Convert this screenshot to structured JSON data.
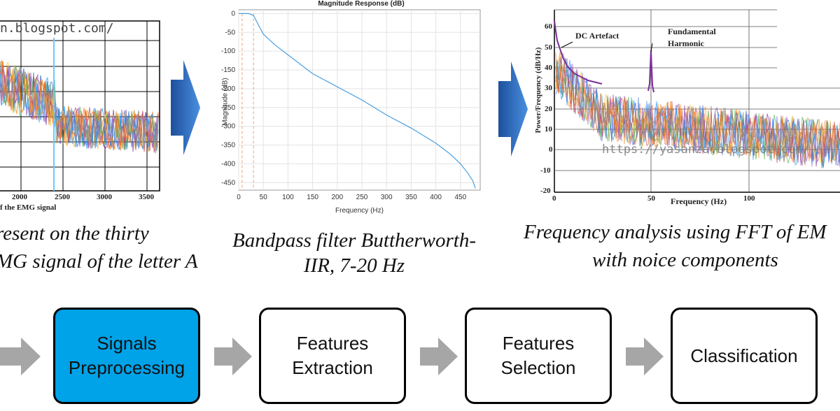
{
  "panel1": {
    "watermark": "n.blogspot.com/",
    "x_ticks": [
      "2000",
      "2500",
      "3000",
      "3500"
    ],
    "xlabel_fragment": "f the EMG signal",
    "caption_line1": "resent on the thirty",
    "caption_line2": "MG signal of the letter A"
  },
  "panel2": {
    "title": "Magnitude Response (dB)",
    "ylabel": "Magnitude (dB)",
    "xlabel": "Frequency (Hz)",
    "caption_line1": "Bandpass filter Buttherworth-",
    "caption_line2": "IIR, 7-20 Hz",
    "chart_data": {
      "type": "line",
      "title": "Magnitude Response (dB)",
      "xlabel": "Frequency (Hz)",
      "ylabel": "Magnitude (dB)",
      "xlim": [
        0,
        490
      ],
      "ylim": [
        -470,
        10
      ],
      "x_ticks": [
        0,
        50,
        100,
        150,
        200,
        250,
        300,
        350,
        400,
        450
      ],
      "y_ticks": [
        0,
        -50,
        -100,
        -150,
        -200,
        -250,
        -300,
        -350,
        -400,
        -450
      ],
      "grid": true,
      "series": [
        {
          "x": [
            0,
            7,
            20,
            30,
            50,
            75,
            100,
            150,
            200,
            250,
            300,
            350,
            400,
            430,
            450,
            465,
            475,
            480
          ],
          "y": [
            0,
            0,
            0,
            -5,
            -55,
            -85,
            -110,
            -160,
            -195,
            -230,
            -270,
            -305,
            -345,
            -375,
            -400,
            -425,
            -445,
            -465
          ]
        }
      ],
      "markers_x": [
        7,
        30
      ]
    }
  },
  "panel3": {
    "ylabel": "Power/Frequency (dB/Hz)",
    "xlabel": "Frequency (Hz)",
    "y_ticks": [
      "60",
      "50",
      "40",
      "30",
      "20",
      "10",
      "0",
      "-10",
      "-20"
    ],
    "x_ticks": [
      "0",
      "50",
      "100"
    ],
    "annotation_dc": "DC Artefact",
    "annotation_fund_line1": "Fundamental",
    "annotation_fund_line2": "Harmonic",
    "watermark": "https://yasanza.blogspot.com/",
    "caption_line1": "Frequency analysis using FFT of EM",
    "caption_line2": "with noice components"
  },
  "pipeline": {
    "steps": [
      {
        "label_line1": "Signals",
        "label_line2": "Preprocessing"
      },
      {
        "label_line1": "Features",
        "label_line2": "Extraction"
      },
      {
        "label_line1": "Features",
        "label_line2": "Selection"
      },
      {
        "label": "Classification"
      }
    ],
    "colors": {
      "active": "#00a2e8",
      "arrow_gray": "#a6a6a6",
      "arrow_blue": "#2e6fc4"
    }
  }
}
